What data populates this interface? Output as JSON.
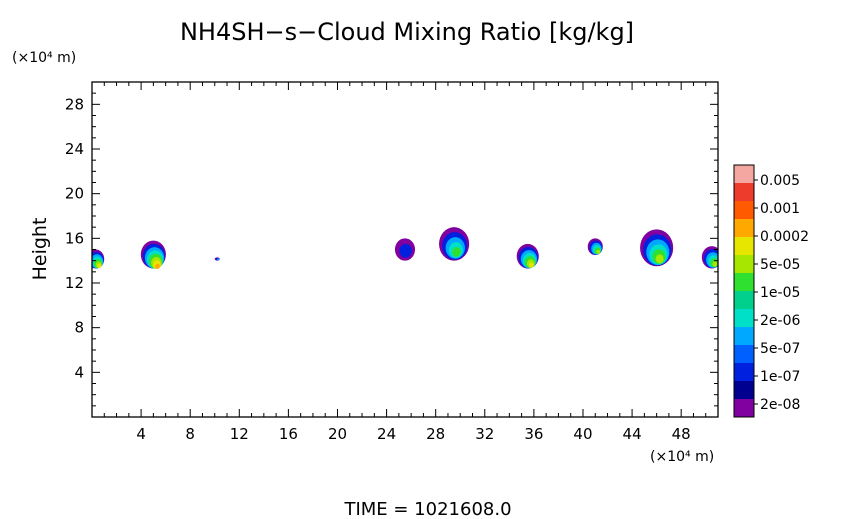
{
  "chart_data": {
    "type": "heatmap",
    "title": "NH4SH−s−Cloud Mixing Ratio [kg/kg]",
    "ylabel": "Height",
    "xlabel": "",
    "y_unit": "(×10⁴ m)",
    "x_unit": "(×10⁴ m)",
    "footer": "TIME =  1021608.0",
    "xlim": [
      0,
      51
    ],
    "ylim": [
      0,
      30
    ],
    "x_ticks": [
      4,
      8,
      12,
      16,
      20,
      24,
      28,
      32,
      36,
      40,
      44,
      48
    ],
    "x_tick_labels": [
      "4",
      "8",
      "12",
      "16",
      "20",
      "24",
      "28",
      "32",
      "36",
      "40",
      "44",
      "48"
    ],
    "y_ticks": [
      4,
      8,
      12,
      16,
      20,
      24,
      28
    ],
    "y_tick_labels": [
      "4",
      "8",
      "12",
      "16",
      "20",
      "24",
      "28"
    ],
    "colorbar": {
      "labels": [
        "0.005",
        "0.001",
        "0.0002",
        "5e-05",
        "1e-05",
        "2e-06",
        "5e-07",
        "1e-07",
        "2e-08"
      ],
      "colors": [
        "#f4a6a0",
        "#ee3c2c",
        "#ff5a00",
        "#ffa800",
        "#e6e600",
        "#a6e600",
        "#30e030",
        "#00d08c",
        "#00e0c8",
        "#00a8ff",
        "#0060ff",
        "#0020e0",
        "#000090",
        "#8000a0"
      ]
    },
    "clouds": [
      {
        "x": 0.3,
        "y0": 13.3,
        "y1": 15.0,
        "peak": "0.0002"
      },
      {
        "x": 5.0,
        "y0": 13.3,
        "y1": 15.8,
        "peak": "0.001"
      },
      {
        "x": 10.2,
        "y0": 14.0,
        "y1": 14.3,
        "peak": "5e-07"
      },
      {
        "x": 25.5,
        "y0": 14.0,
        "y1": 16.0,
        "peak": "1e-07"
      },
      {
        "x": 29.5,
        "y0": 14.0,
        "y1": 17.0,
        "peak": "1e-05"
      },
      {
        "x": 35.5,
        "y0": 13.3,
        "y1": 15.5,
        "peak": "0.0002"
      },
      {
        "x": 41.0,
        "y0": 14.5,
        "y1": 16.0,
        "peak": "5e-05"
      },
      {
        "x": 46.0,
        "y0": 13.5,
        "y1": 16.8,
        "peak": "5e-05"
      },
      {
        "x": 50.5,
        "y0": 13.3,
        "y1": 15.3,
        "peak": "5e-05"
      }
    ]
  }
}
